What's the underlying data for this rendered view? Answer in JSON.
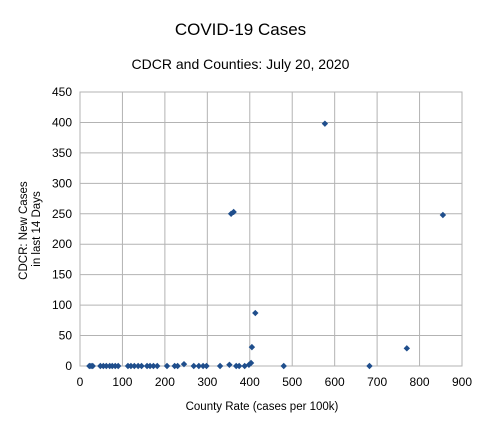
{
  "chart_data": {
    "type": "scatter",
    "title": "COVID-19 Cases",
    "subtitle": "CDCR and Counties: July 20, 2020",
    "xlabel": "County Rate (cases per 100k)",
    "ylabel": [
      "CDCR: New Cases",
      "in last 14 Days"
    ],
    "xlim": [
      0,
      900
    ],
    "ylim": [
      0,
      450
    ],
    "xticks": [
      0,
      100,
      200,
      300,
      400,
      500,
      600,
      700,
      800,
      900
    ],
    "yticks": [
      0,
      50,
      100,
      150,
      200,
      250,
      300,
      350,
      400,
      450
    ],
    "grid": true,
    "legend": "none",
    "marker_color": "#1f4e8c",
    "points": [
      {
        "x": 22,
        "y": 0
      },
      {
        "x": 26,
        "y": 0
      },
      {
        "x": 30,
        "y": 0
      },
      {
        "x": 48,
        "y": 0
      },
      {
        "x": 55,
        "y": 0
      },
      {
        "x": 62,
        "y": 0
      },
      {
        "x": 70,
        "y": 0
      },
      {
        "x": 76,
        "y": 0
      },
      {
        "x": 83,
        "y": 0
      },
      {
        "x": 90,
        "y": 0
      },
      {
        "x": 113,
        "y": 0
      },
      {
        "x": 120,
        "y": 0
      },
      {
        "x": 128,
        "y": 0
      },
      {
        "x": 137,
        "y": 0
      },
      {
        "x": 145,
        "y": 0
      },
      {
        "x": 158,
        "y": 0
      },
      {
        "x": 165,
        "y": 0
      },
      {
        "x": 173,
        "y": 0
      },
      {
        "x": 182,
        "y": 0
      },
      {
        "x": 205,
        "y": 0
      },
      {
        "x": 223,
        "y": 0
      },
      {
        "x": 230,
        "y": 0
      },
      {
        "x": 245,
        "y": 3
      },
      {
        "x": 268,
        "y": 0
      },
      {
        "x": 280,
        "y": 0
      },
      {
        "x": 290,
        "y": 0
      },
      {
        "x": 298,
        "y": 0
      },
      {
        "x": 330,
        "y": 0
      },
      {
        "x": 352,
        "y": 2
      },
      {
        "x": 356,
        "y": 250
      },
      {
        "x": 362,
        "y": 253
      },
      {
        "x": 368,
        "y": 0
      },
      {
        "x": 375,
        "y": 0
      },
      {
        "x": 388,
        "y": 0
      },
      {
        "x": 398,
        "y": 2
      },
      {
        "x": 403,
        "y": 5
      },
      {
        "x": 405,
        "y": 31
      },
      {
        "x": 413,
        "y": 87
      },
      {
        "x": 480,
        "y": 0
      },
      {
        "x": 577,
        "y": 398
      },
      {
        "x": 682,
        "y": 0
      },
      {
        "x": 770,
        "y": 29
      },
      {
        "x": 855,
        "y": 248
      }
    ]
  }
}
